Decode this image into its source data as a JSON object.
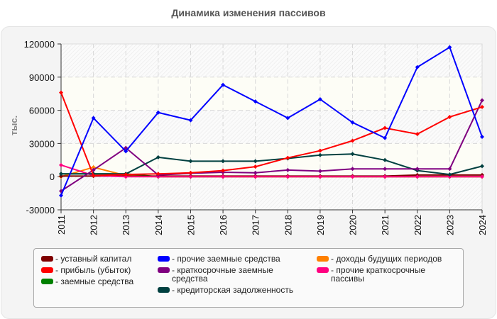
{
  "title": "Динамика изменения пассивов",
  "y_axis_label": "тыс.",
  "chart_data": {
    "type": "line",
    "title": "Динамика изменения пассивов",
    "xlabel": "",
    "ylabel": "тыс.",
    "ylim": [
      -30000,
      120000
    ],
    "yticks": [
      120000,
      90000,
      60000,
      30000,
      0,
      -30000
    ],
    "ytick_labels": [
      "120000",
      "90000",
      "60000",
      "30000",
      "0",
      "-30000"
    ],
    "grid": true,
    "legend_position": "bottom",
    "x": [
      "2011",
      "2012",
      "2013",
      "2014",
      "2015",
      "2016",
      "2017",
      "2018",
      "2019",
      "2020",
      "2021",
      "2022",
      "2023",
      "2024"
    ],
    "series": [
      {
        "name": "уставный капитал",
        "color": "#7f0000",
        "values": [
          500,
          500,
          500,
          500,
          500,
          500,
          500,
          500,
          500,
          500,
          500,
          1500,
          1500,
          1500
        ]
      },
      {
        "name": "прибыль (убыток)",
        "color": "#ff0000",
        "values": [
          76000,
          1000,
          2000,
          2500,
          3500,
          5500,
          9000,
          17000,
          23500,
          32500,
          44000,
          38500,
          54000,
          63000
        ]
      },
      {
        "name": "заемные средства",
        "color": "#008000",
        "values": [
          2500,
          2500,
          2500,
          0,
          0,
          0,
          0,
          0,
          0,
          0,
          0,
          0,
          0,
          0
        ]
      },
      {
        "name": "прочие заемные средства",
        "color": "#0000ff",
        "values": [
          -17000,
          53000,
          23000,
          58000,
          51000,
          83000,
          68000,
          53000,
          70000,
          49000,
          35000,
          99000,
          117000,
          36000
        ]
      },
      {
        "name": "краткосрочные заемные средства",
        "color": "#800080",
        "values": [
          -13000,
          6000,
          26000,
          1500,
          3000,
          4000,
          3500,
          6000,
          5000,
          7000,
          7000,
          7000,
          7000,
          69000
        ]
      },
      {
        "name": "кредиторская задолженность",
        "color": "#004040",
        "values": [
          2500,
          2500,
          2500,
          17500,
          14000,
          14000,
          14000,
          16500,
          19500,
          20500,
          15000,
          5500,
          2000,
          9500
        ]
      },
      {
        "name": "доходы будущих периодов",
        "color": "#ff8000",
        "values": [
          0,
          8500,
          1000,
          0,
          0,
          0,
          0,
          0,
          0,
          0,
          0,
          0,
          0,
          0
        ]
      },
      {
        "name": "прочие краткосрочные пассивы",
        "color": "#ff0080",
        "values": [
          10500,
          1000,
          0,
          0,
          0,
          0,
          0,
          0,
          0,
          0,
          0,
          0,
          0,
          0
        ]
      }
    ]
  },
  "legend": {
    "columns": [
      [
        {
          "label": "- уставный капитал",
          "color": "#7f0000"
        },
        {
          "label": "- прибыль (убыток)",
          "color": "#ff0000"
        },
        {
          "label": "- заемные средства",
          "color": "#008000"
        }
      ],
      [
        {
          "label": "- прочие заемные средства",
          "color": "#0000ff"
        },
        {
          "label": "- краткосрочные заемные средства",
          "color": "#800080"
        },
        {
          "label": "- кредиторская задолженность",
          "color": "#004040"
        }
      ],
      [
        {
          "label": "- доходы будущих периодов",
          "color": "#ff8000"
        },
        {
          "label": "- прочие краткосрочные пассивы",
          "color": "#ff0080"
        }
      ]
    ]
  }
}
